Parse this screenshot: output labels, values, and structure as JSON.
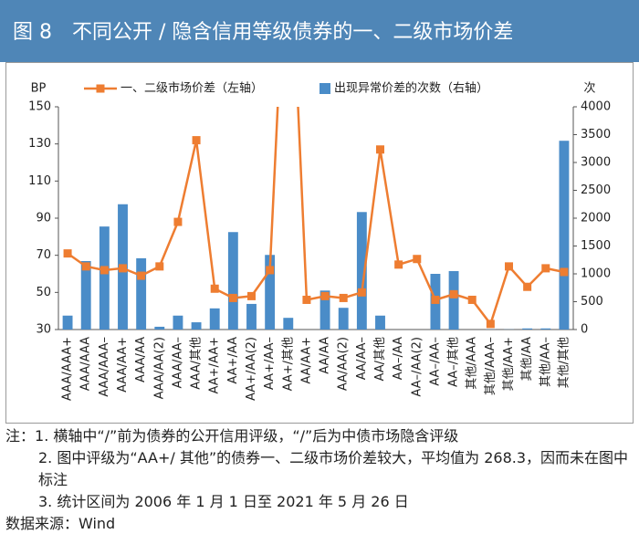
{
  "chart_data": {
    "type": "combo",
    "title": "图 8　不同公开 / 隐含信用等级债券的一、二级市场价差",
    "y_label": "BP",
    "y2_label": "次",
    "categories": [
      "AAA/AAA+",
      "AAA/AAA",
      "AAA/AAA–",
      "AAA/AA+",
      "AAA/AA",
      "AAA/AA(2)",
      "AAA/AA–",
      "AAA/其他",
      "AA+/AA+",
      "AA+/AA",
      "AA+/AA(2)",
      "AA+/AA–",
      "AA+/其他",
      "AA/AA+",
      "AA/AA",
      "AA/AA(2)",
      "AA/AA–",
      "AA/其他",
      "AA–/AA",
      "AA–/AA(2)",
      "AA–/AA–",
      "AA–/其他",
      "其他/AAA",
      "其他/AAA–",
      "其他/AA+",
      "其他/AA",
      "其他/AA–",
      "其他/其他"
    ],
    "series": [
      {
        "name": "出现异常价差的次数（右轴）",
        "type": "bar",
        "axis": "y2",
        "color": "#4a8cc8",
        "values": [
          250,
          1230,
          1850,
          2250,
          1280,
          50,
          250,
          130,
          380,
          1750,
          460,
          1340,
          210,
          0,
          700,
          390,
          2110,
          250,
          0,
          0,
          1000,
          1050,
          0,
          5,
          3,
          20,
          20,
          3390
        ]
      },
      {
        "name": "一、二级市场价差（左轴）",
        "type": "line",
        "axis": "y",
        "color": "#ee7d31",
        "values": [
          71,
          64,
          62,
          63,
          59,
          64,
          88,
          132,
          52,
          47,
          48,
          62,
          268.3,
          46,
          48,
          47,
          50,
          127,
          65,
          68,
          46,
          49,
          46,
          33,
          64,
          53,
          63,
          61
        ]
      }
    ],
    "ylim": [
      30,
      150
    ],
    "yticks": [
      30,
      50,
      70,
      90,
      110,
      130,
      150
    ],
    "y2lim": [
      0,
      4000
    ],
    "y2ticks": [
      0,
      500,
      1000,
      1500,
      2000,
      2500,
      3000,
      3500,
      4000
    ]
  },
  "notes_label": "注：",
  "notes": [
    "1. 横轴中“/”前为债券的公开信用评级，“/”后为中债市场隐含评级",
    "2. 图中评级为“AA+/ 其他”的债券一、二级市场价差较大，平均值为 268.3，因而未在图中标注",
    "3. 统计区间为 2006 年 1 月 1 日至 2021 年 5 月 26 日"
  ],
  "source": "数据来源：Wind"
}
